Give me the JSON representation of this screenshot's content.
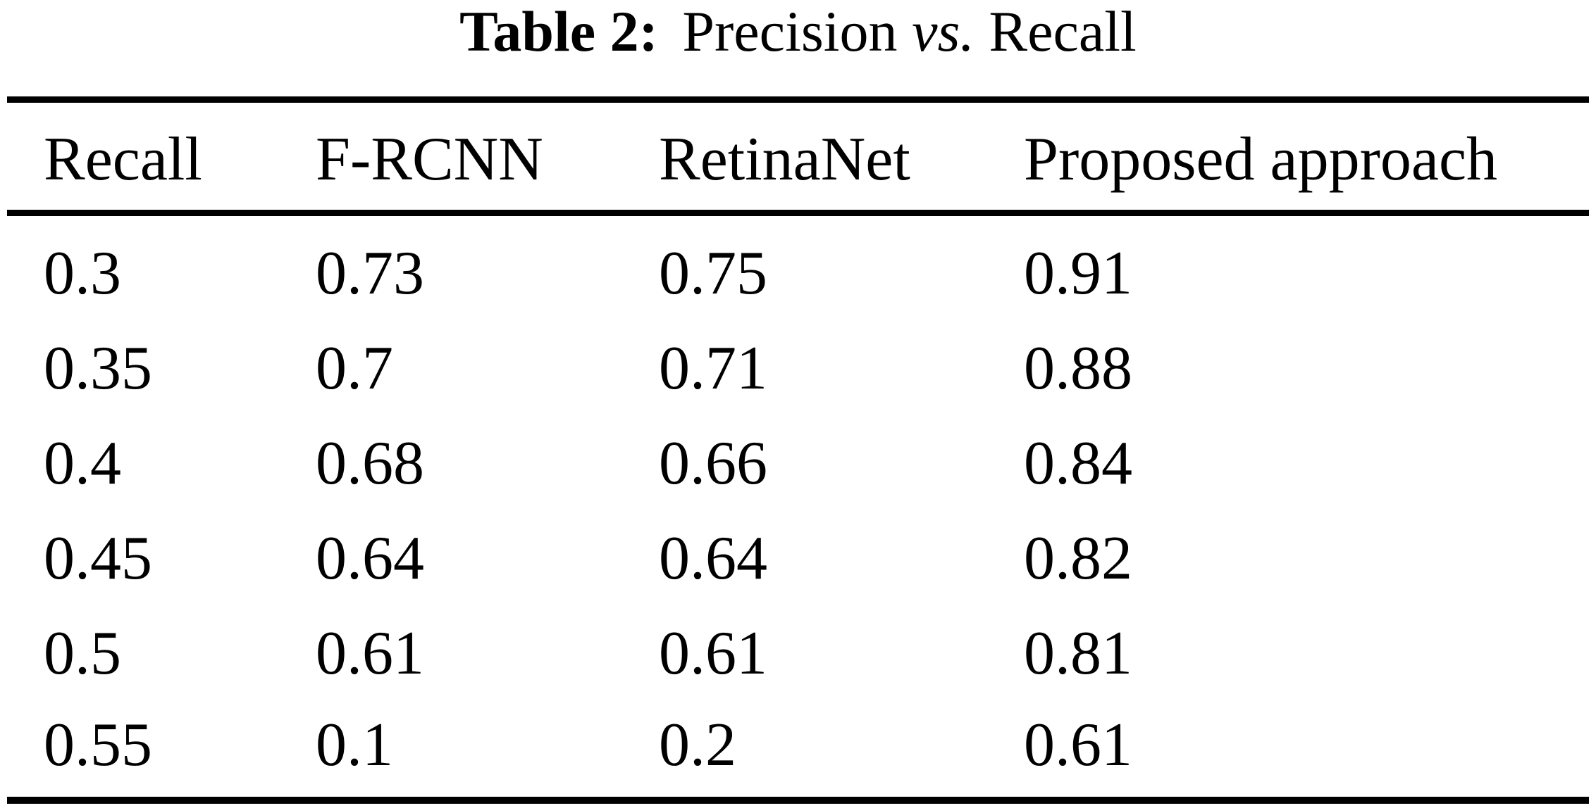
{
  "caption": {
    "label": "Table 2:",
    "precision": "Precision",
    "vs": "vs.",
    "recall": "Recall"
  },
  "table": {
    "headers": [
      "Recall",
      "F-RCNN",
      "RetinaNet",
      "Proposed approach"
    ],
    "rows": [
      [
        "0.3",
        "0.73",
        "0.75",
        "0.91"
      ],
      [
        "0.35",
        "0.7",
        "0.71",
        "0.88"
      ],
      [
        "0.4",
        "0.68",
        "0.66",
        "0.84"
      ],
      [
        "0.45",
        "0.64",
        "0.64",
        "0.82"
      ],
      [
        "0.5",
        "0.61",
        "0.61",
        "0.81"
      ],
      [
        "0.55",
        "0.1",
        "0.2",
        "0.61"
      ]
    ]
  },
  "colors": {
    "text": "#000000",
    "background": "#ffffff",
    "rule": "#000000"
  },
  "chart_data": {
    "type": "table",
    "title": "Table 2: Precision vs. Recall",
    "columns": [
      "Recall",
      "F-RCNN",
      "RetinaNet",
      "Proposed approach"
    ],
    "rows": [
      [
        0.3,
        0.73,
        0.75,
        0.91
      ],
      [
        0.35,
        0.7,
        0.71,
        0.88
      ],
      [
        0.4,
        0.68,
        0.66,
        0.84
      ],
      [
        0.45,
        0.64,
        0.64,
        0.82
      ],
      [
        0.5,
        0.61,
        0.61,
        0.81
      ],
      [
        0.55,
        0.1,
        0.2,
        0.61
      ]
    ]
  }
}
